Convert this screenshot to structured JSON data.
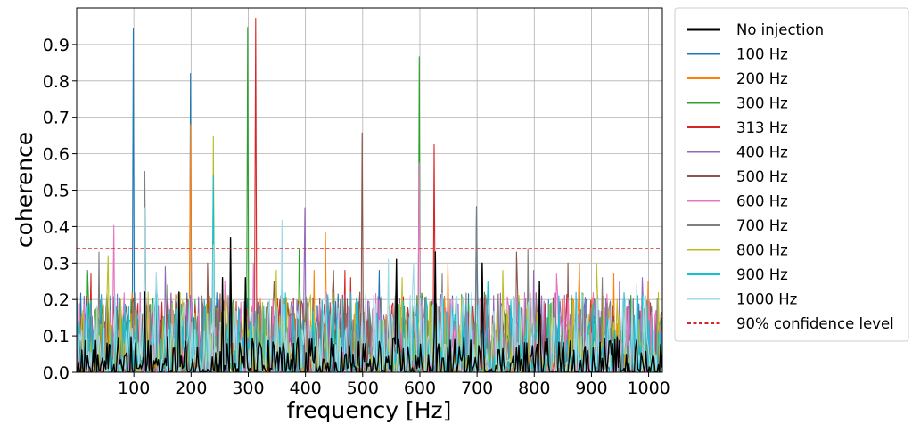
{
  "chart_data": {
    "type": "line",
    "xlabel": "frequency [Hz]",
    "ylabel": "coherence",
    "xlim": [
      0,
      1024
    ],
    "ylim": [
      0,
      1.0
    ],
    "x_ticks": [
      "100",
      "200",
      "300",
      "400",
      "500",
      "600",
      "700",
      "800",
      "900",
      "1000"
    ],
    "y_ticks": [
      "0.0",
      "0.1",
      "0.2",
      "0.3",
      "0.4",
      "0.5",
      "0.6",
      "0.7",
      "0.8",
      "0.9"
    ],
    "grid": true,
    "legend_position": "outside-right",
    "confidence_level": {
      "name": "90% confidence level",
      "value": 0.34,
      "color": "#d62728"
    },
    "series": [
      {
        "name": "No injection",
        "color": "#000000",
        "peaks": [
          [
            270,
            0.37
          ],
          [
            255,
            0.26
          ],
          [
            295,
            0.26
          ],
          [
            560,
            0.31
          ],
          [
            628,
            0.33
          ],
          [
            710,
            0.3
          ],
          [
            810,
            0.25
          ],
          [
            120,
            0.22
          ],
          [
            180,
            0.22
          ]
        ]
      },
      {
        "name": "100 Hz",
        "color": "#1f77b4",
        "peaks": [
          [
            100,
            0.945
          ],
          [
            200,
            0.82
          ],
          [
            700,
            0.455
          ],
          [
            60,
            0.21
          ],
          [
            530,
            0.28
          ]
        ]
      },
      {
        "name": "200 Hz",
        "color": "#ff7f0e",
        "peaks": [
          [
            200,
            0.68
          ],
          [
            435,
            0.385
          ],
          [
            415,
            0.28
          ],
          [
            650,
            0.3
          ],
          [
            880,
            0.3
          ],
          [
            940,
            0.27
          ],
          [
            1000,
            0.25
          ],
          [
            140,
            0.24
          ]
        ]
      },
      {
        "name": "300 Hz",
        "color": "#2ca02c",
        "peaks": [
          [
            300,
            0.947
          ],
          [
            600,
            0.866
          ],
          [
            390,
            0.34
          ],
          [
            20,
            0.28
          ],
          [
            160,
            0.24
          ]
        ]
      },
      {
        "name": "313 Hz",
        "color": "#d62728",
        "peaks": [
          [
            313,
            0.972
          ],
          [
            626,
            0.625
          ],
          [
            25,
            0.27
          ],
          [
            480,
            0.26
          ],
          [
            470,
            0.28
          ],
          [
            230,
            0.22
          ]
        ]
      },
      {
        "name": "400 Hz",
        "color": "#9467bd",
        "peaks": [
          [
            400,
            0.452
          ],
          [
            155,
            0.29
          ],
          [
            560,
            0.28
          ],
          [
            800,
            0.28
          ],
          [
            950,
            0.25
          ],
          [
            990,
            0.26
          ]
        ]
      },
      {
        "name": "500 Hz",
        "color": "#8c564b",
        "peaks": [
          [
            500,
            0.657
          ],
          [
            770,
            0.33
          ],
          [
            860,
            0.3
          ],
          [
            710,
            0.3
          ],
          [
            450,
            0.28
          ],
          [
            230,
            0.3
          ],
          [
            345,
            0.25
          ]
        ]
      },
      {
        "name": "600 Hz",
        "color": "#e377c2",
        "peaks": [
          [
            600,
            0.575
          ],
          [
            65,
            0.403
          ],
          [
            310,
            0.3
          ],
          [
            260,
            0.25
          ],
          [
            840,
            0.27
          ]
        ]
      },
      {
        "name": "700 Hz",
        "color": "#7f7f7f",
        "peaks": [
          [
            120,
            0.551
          ],
          [
            700,
            0.45
          ],
          [
            40,
            0.33
          ],
          [
            790,
            0.34
          ],
          [
            640,
            0.27
          ],
          [
            920,
            0.26
          ]
        ]
      },
      {
        "name": "800 Hz",
        "color": "#bcbd22",
        "peaks": [
          [
            240,
            0.647
          ],
          [
            55,
            0.32
          ],
          [
            350,
            0.28
          ],
          [
            910,
            0.3
          ],
          [
            745,
            0.28
          ],
          [
            570,
            0.26
          ]
        ]
      },
      {
        "name": "900 Hz",
        "color": "#17becf",
        "peaks": [
          [
            240,
            0.54
          ],
          [
            360,
            0.27
          ],
          [
            720,
            0.25
          ],
          [
            140,
            0.25
          ],
          [
            480,
            0.22
          ]
        ]
      },
      {
        "name": "1000 Hz",
        "color": "#9edae5",
        "peaks": [
          [
            120,
            0.452
          ],
          [
            360,
            0.417
          ],
          [
            240,
            0.35
          ],
          [
            140,
            0.275
          ],
          [
            545,
            0.31
          ],
          [
            590,
            0.3
          ],
          [
            810,
            0.25
          ],
          [
            980,
            0.24
          ]
        ]
      }
    ]
  }
}
